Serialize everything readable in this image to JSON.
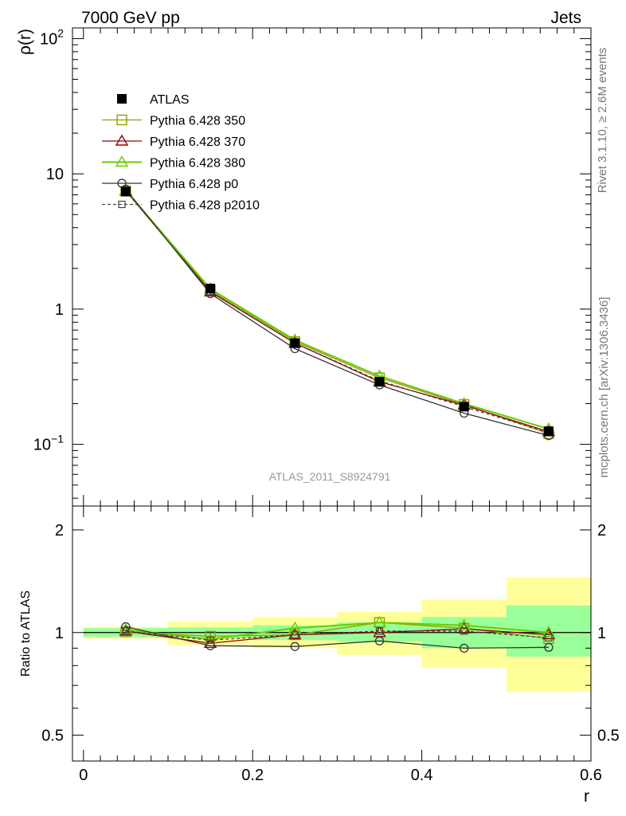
{
  "chart_data": [
    {
      "type": "line",
      "title_left": "7000 GeV pp",
      "title_right": "Jets",
      "ylabel": "ρ(r)",
      "yscale": "log",
      "ylim": [
        0.035,
        120
      ],
      "xlim": [
        -0.013,
        0.6
      ],
      "yticks": [
        {
          "value": 0.1,
          "base": "10",
          "exp": "−1"
        },
        {
          "value": 1,
          "base": "1",
          "exp": ""
        },
        {
          "value": 10,
          "base": "10",
          "exp": ""
        },
        {
          "value": 100,
          "base": "10",
          "exp": "2"
        }
      ],
      "x": [
        0.05,
        0.15,
        0.25,
        0.35,
        0.45,
        0.55
      ],
      "series": [
        {
          "name": "ATLAS",
          "color": "#000000",
          "marker": "filled-square",
          "line": "none",
          "values": [
            7.4,
            1.42,
            0.56,
            0.29,
            0.19,
            0.125
          ]
        },
        {
          "name": "Pythia 6.428 350",
          "color": "#999900",
          "marker": "open-square",
          "line": "solid",
          "values": [
            7.45,
            1.37,
            0.575,
            0.31,
            0.197,
            0.12
          ]
        },
        {
          "name": "Pythia 6.428 370",
          "color": "#990000",
          "marker": "open-triangle",
          "line": "solid",
          "values": [
            7.5,
            1.34,
            0.56,
            0.29,
            0.195,
            0.124
          ]
        },
        {
          "name": "Pythia 6.428 380",
          "color": "#66cc00",
          "marker": "open-triangle",
          "line": "solid",
          "values": [
            7.55,
            1.41,
            0.59,
            0.32,
            0.2,
            0.13
          ]
        },
        {
          "name": "Pythia 6.428 p0",
          "color": "#333333",
          "marker": "open-circle",
          "line": "solid",
          "values": [
            7.7,
            1.3,
            0.51,
            0.275,
            0.17,
            0.116
          ]
        },
        {
          "name": "Pythia 6.428 p2010",
          "color": "#444444",
          "marker": "small-open-square",
          "line": "dashed",
          "values": [
            7.5,
            1.35,
            0.56,
            0.295,
            0.19,
            0.122
          ]
        }
      ],
      "watermark": "ATLAS_2011_S8924791"
    },
    {
      "type": "line",
      "ylabel": "Ratio to ATLAS",
      "xlabel": "r",
      "yscale": "log",
      "ylim": [
        0.42,
        2.35
      ],
      "xlim": [
        -0.013,
        0.6
      ],
      "yticks": [
        {
          "value": 0.5,
          "label": "0.5"
        },
        {
          "value": 1,
          "label": "1"
        },
        {
          "value": 2,
          "label": "2"
        }
      ],
      "xticks": [
        {
          "value": 0,
          "label": "0"
        },
        {
          "value": 0.2,
          "label": "0.2"
        },
        {
          "value": 0.4,
          "label": "0.4"
        },
        {
          "value": 0.6,
          "label": "0.6"
        }
      ],
      "uncertainty_bands": {
        "bins": [
          [
            0.0,
            0.1
          ],
          [
            0.1,
            0.2
          ],
          [
            0.2,
            0.3
          ],
          [
            0.3,
            0.4
          ],
          [
            0.4,
            0.5
          ],
          [
            0.5,
            0.6
          ]
        ],
        "stat": {
          "color": "#99ff99",
          "lo": [
            0.97,
            0.965,
            0.95,
            0.94,
            0.9,
            0.85
          ],
          "hi": [
            1.03,
            1.035,
            1.05,
            1.07,
            1.11,
            1.2
          ]
        },
        "total": {
          "color": "#ffff99",
          "lo": [
            0.96,
            0.92,
            0.9,
            0.86,
            0.79,
            0.67
          ],
          "hi": [
            1.04,
            1.08,
            1.11,
            1.15,
            1.25,
            1.45
          ]
        }
      },
      "series": [
        {
          "name": "Pythia 6.428 350",
          "color": "#999900",
          "marker": "open-square",
          "line": "solid",
          "values": [
            1.005,
            0.975,
            0.985,
            1.07,
            1.03,
            0.96
          ]
        },
        {
          "name": "Pythia 6.428 370",
          "color": "#990000",
          "marker": "open-triangle",
          "line": "solid",
          "values": [
            1.01,
            0.93,
            0.985,
            1.0,
            1.025,
            0.985
          ]
        },
        {
          "name": "Pythia 6.428 380",
          "color": "#66cc00",
          "marker": "open-triangle",
          "line": "solid",
          "values": [
            1.02,
            0.955,
            1.03,
            1.07,
            1.05,
            1.0
          ]
        },
        {
          "name": "Pythia 6.428 p0",
          "color": "#333333",
          "marker": "open-circle",
          "line": "solid",
          "values": [
            1.04,
            0.915,
            0.91,
            0.945,
            0.9,
            0.905
          ]
        },
        {
          "name": "Pythia 6.428 p2010",
          "color": "#444444",
          "marker": "small-open-square",
          "line": "dashed",
          "values": [
            1.01,
            0.95,
            0.985,
            1.01,
            1.01,
            0.965
          ]
        }
      ]
    }
  ],
  "side_text": {
    "rivet": "Rivet 3.1.10, ≥ 2.6M events",
    "mcplots": "mcplots.cern.ch [arXiv:1306.3436]"
  }
}
